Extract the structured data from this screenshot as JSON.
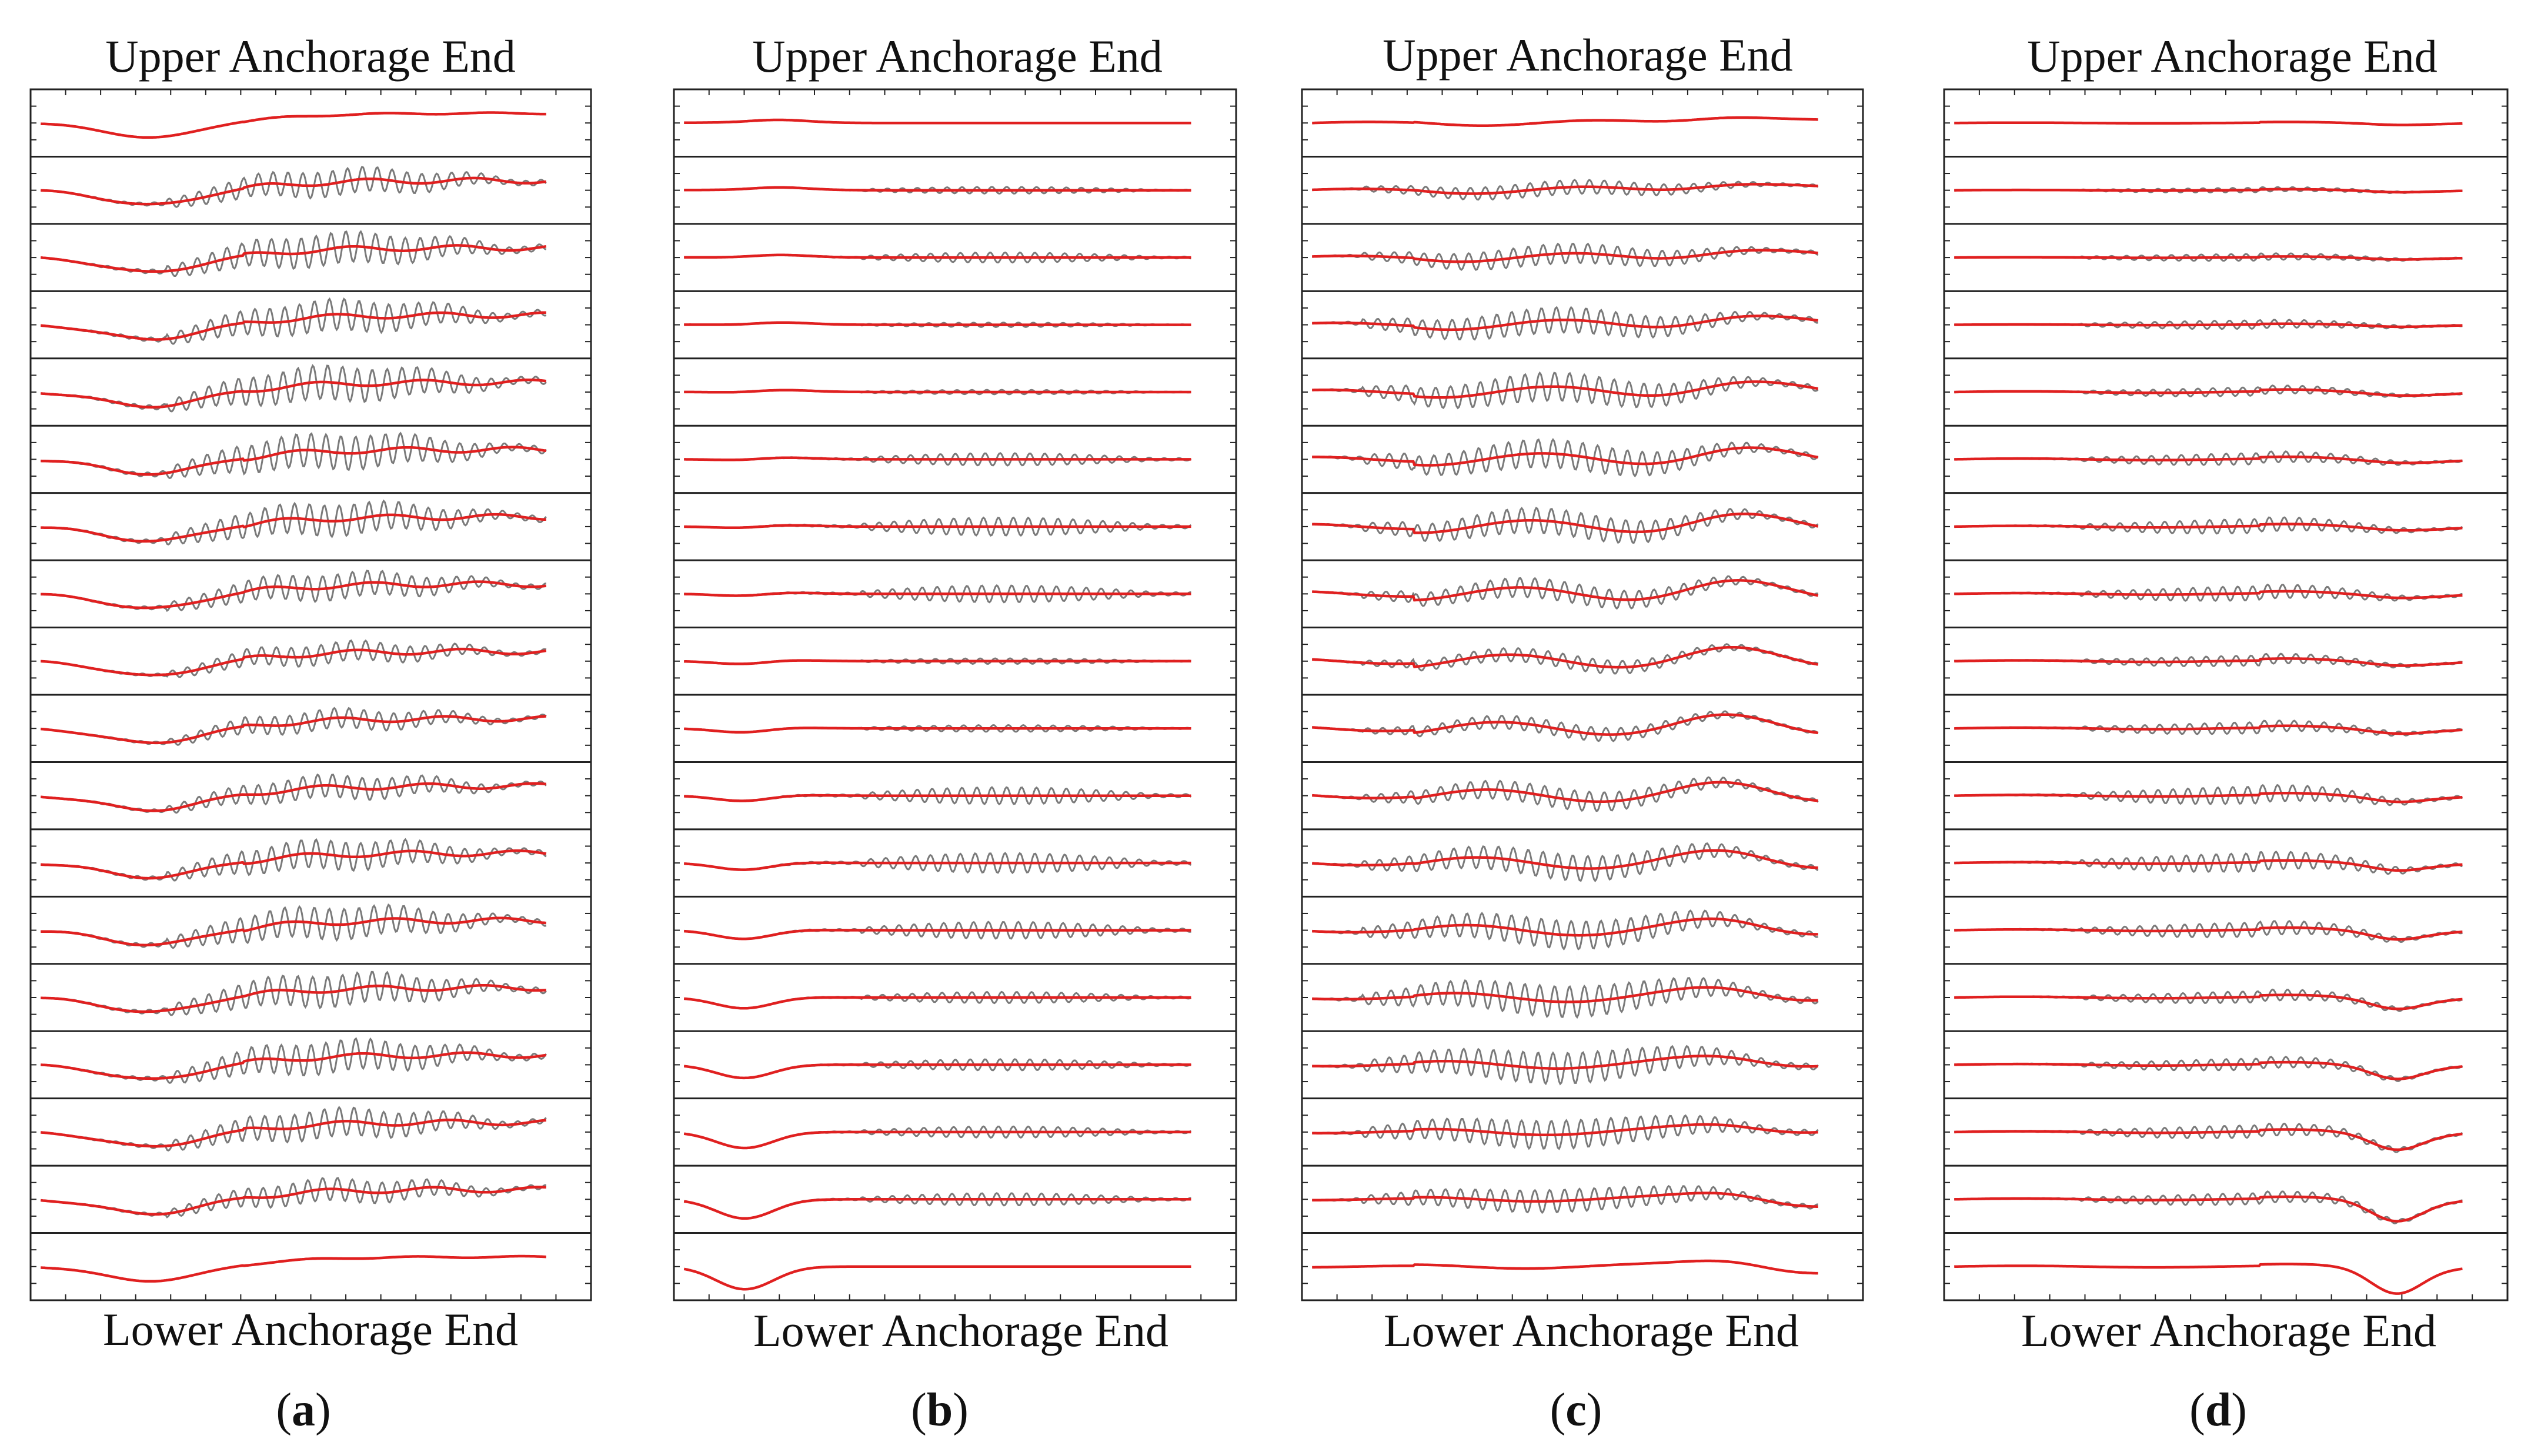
{
  "figure": {
    "top_label": "Upper Anchorage End",
    "bottom_label": "Lower Anchorage End"
  },
  "chart_data": [
    {
      "type": "line",
      "panel_label": "a",
      "title_top": "Upper Anchorage End",
      "title_bottom": "Lower Anchorage End",
      "n_strips": 18,
      "x": [
        0,
        1
      ],
      "series_names": [
        "raw (gray)",
        "low-pass (red)"
      ],
      "colors": {
        "raw": "#7a7a7a",
        "filtered": "#e02020",
        "frame": "#222222"
      },
      "raw_amplitude": [
        0.0,
        0.45,
        0.55,
        0.55,
        0.6,
        0.6,
        0.55,
        0.45,
        0.35,
        0.35,
        0.4,
        0.5,
        0.55,
        0.55,
        0.55,
        0.5,
        0.4,
        0.0
      ],
      "envelope_region": [
        0.25,
        1.0
      ],
      "baseline_profile": "descent-then-rise",
      "grid": false
    },
    {
      "type": "line",
      "panel_label": "b",
      "title_top": "Upper Anchorage End",
      "title_bottom": "Lower Anchorage End",
      "n_strips": 18,
      "x": [
        0,
        1
      ],
      "series_names": [
        "raw (gray)",
        "low-pass (red)"
      ],
      "colors": {
        "raw": "#7a7a7a",
        "filtered": "#e02020",
        "frame": "#222222"
      },
      "raw_amplitude": [
        0.0,
        0.12,
        0.18,
        0.08,
        0.08,
        0.22,
        0.32,
        0.3,
        0.1,
        0.12,
        0.3,
        0.35,
        0.3,
        0.2,
        0.2,
        0.2,
        0.22,
        0.0
      ],
      "envelope_region": [
        0.35,
        1.0
      ],
      "baseline_profile": "early-dip-lower",
      "grid": false
    },
    {
      "type": "line",
      "panel_label": "c",
      "title_top": "Upper Anchorage End",
      "title_bottom": "Lower Anchorage End",
      "n_strips": 18,
      "x": [
        0,
        1
      ],
      "series_names": [
        "raw (gray)",
        "low-pass (red)"
      ],
      "colors": {
        "raw": "#7a7a7a",
        "filtered": "#e02020",
        "frame": "#222222"
      },
      "raw_amplitude": [
        0.0,
        0.25,
        0.35,
        0.45,
        0.5,
        0.5,
        0.45,
        0.35,
        0.25,
        0.25,
        0.35,
        0.45,
        0.5,
        0.55,
        0.55,
        0.5,
        0.4,
        0.0
      ],
      "envelope_region": [
        0.1,
        1.0
      ],
      "baseline_profile": "late-bump",
      "grid": false
    },
    {
      "type": "line",
      "panel_label": "d",
      "title_top": "Upper Anchorage End",
      "title_bottom": "Lower Anchorage End",
      "n_strips": 18,
      "x": [
        0,
        1
      ],
      "series_names": [
        "raw (gray)",
        "low-pass (red)"
      ],
      "colors": {
        "raw": "#7a7a7a",
        "filtered": "#e02020",
        "frame": "#222222"
      },
      "raw_amplitude": [
        0.0,
        0.08,
        0.12,
        0.15,
        0.15,
        0.2,
        0.25,
        0.25,
        0.18,
        0.2,
        0.3,
        0.32,
        0.25,
        0.2,
        0.2,
        0.22,
        0.2,
        0.0
      ],
      "envelope_region": [
        0.25,
        1.0
      ],
      "baseline_profile": "late-dip-lower",
      "grid": false
    }
  ]
}
